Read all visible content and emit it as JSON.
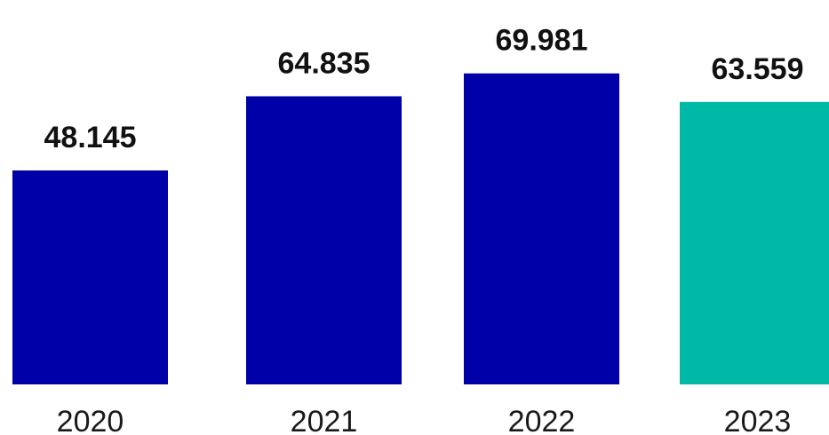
{
  "chart_data": {
    "type": "bar",
    "categories": [
      "2020",
      "2021",
      "2022",
      "2023"
    ],
    "values": [
      48145,
      64835,
      69981,
      63559
    ],
    "data_labels": [
      "48.145",
      "64.835",
      "69.981",
      "63.559"
    ],
    "colors": [
      "#0000a8",
      "#0000a8",
      "#0000a8",
      "#00b8a6"
    ],
    "grid": false,
    "legend": "none",
    "ylim": [
      0,
      80000
    ]
  }
}
